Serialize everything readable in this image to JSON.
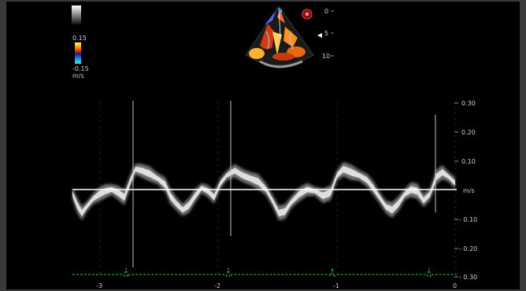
{
  "color_scale": {
    "max_label": "0.15",
    "min_label": "-0.15",
    "unit_label": "m/s"
  },
  "depth_scale": {
    "ticks": [
      "0",
      "5",
      "10"
    ]
  },
  "velocity_axis": {
    "unit_label": "m/s",
    "ticks": [
      "0.30",
      "0.20",
      "0.10",
      "- 0.10",
      "- 0.20",
      "- 0.30"
    ]
  },
  "time_axis": {
    "ticks": [
      "-3",
      "-2",
      "-1",
      "0"
    ]
  },
  "colors": {
    "background": "#000000",
    "frame": "#3a3a3a",
    "baseline": "#ffffff",
    "ecg": "#2ecc40",
    "doppler": "#e6e6e6"
  }
}
